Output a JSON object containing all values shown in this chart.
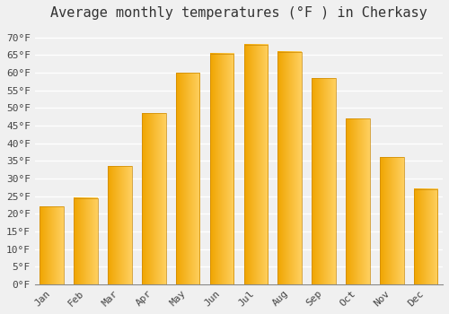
{
  "title": "Average monthly temperatures (°F ) in Cherkasy",
  "months": [
    "Jan",
    "Feb",
    "Mar",
    "Apr",
    "May",
    "Jun",
    "Jul",
    "Aug",
    "Sep",
    "Oct",
    "Nov",
    "Dec"
  ],
  "values": [
    22,
    24.5,
    33.5,
    48.5,
    60,
    65.5,
    68,
    66,
    58.5,
    47,
    36,
    27
  ],
  "bar_color": "#FFC125",
  "bar_color_dark": "#F5A800",
  "background_color": "#F0F0F0",
  "grid_color": "#FFFFFF",
  "ylim": [
    0,
    73
  ],
  "yticks": [
    0,
    5,
    10,
    15,
    20,
    25,
    30,
    35,
    40,
    45,
    50,
    55,
    60,
    65,
    70
  ],
  "title_fontsize": 11,
  "tick_fontsize": 8,
  "bar_width": 0.7
}
